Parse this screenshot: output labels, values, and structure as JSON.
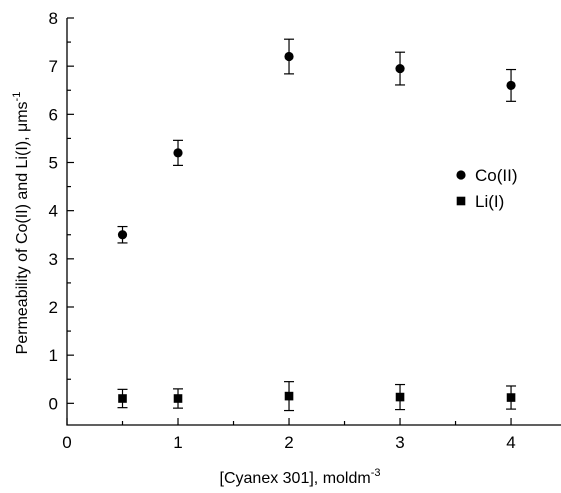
{
  "chart_data": {
    "type": "scatter",
    "xlabel": "[Cyanex 301], moldm",
    "xlabel_sup": "-3",
    "ylabel": "Permeability of Co(II) and Li(I), μms",
    "ylabel_sup": "-1",
    "xlim": [
      0,
      4.45
    ],
    "ylim": [
      -0.45,
      8
    ],
    "xticks": [
      0,
      1,
      2,
      3,
      4
    ],
    "yticks": [
      0,
      1,
      2,
      3,
      4,
      5,
      6,
      7,
      8
    ],
    "grid": false,
    "legend_position": "right",
    "series": [
      {
        "name": "Co(II)",
        "marker": "circle",
        "color": "#000000",
        "x": [
          0.5,
          1,
          2,
          3,
          4
        ],
        "y": [
          3.5,
          5.2,
          7.2,
          6.95,
          6.6
        ],
        "err": [
          0.17,
          0.26,
          0.36,
          0.34,
          0.33
        ]
      },
      {
        "name": "Li(I)",
        "marker": "square",
        "color": "#000000",
        "x": [
          0.5,
          1,
          2,
          3,
          4
        ],
        "y": [
          0.1,
          0.1,
          0.15,
          0.13,
          0.12
        ],
        "err": [
          0.19,
          0.2,
          0.3,
          0.26,
          0.24
        ]
      }
    ]
  }
}
